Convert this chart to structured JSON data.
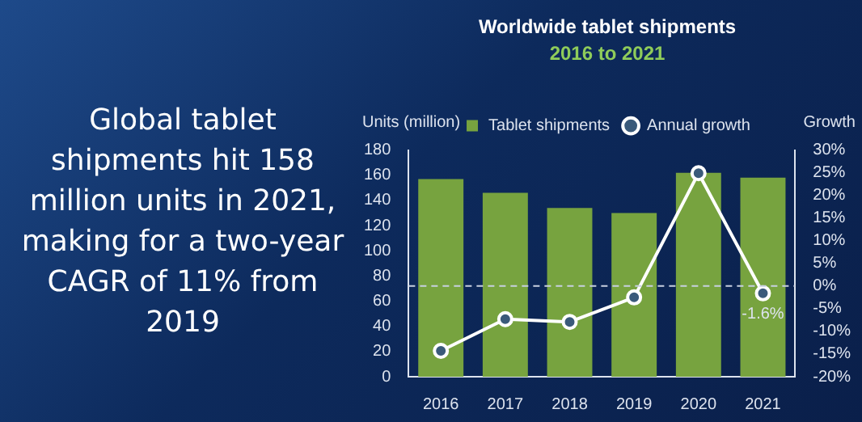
{
  "chart_data": {
    "type": "bar",
    "title": "Worldwide tablet shipments",
    "subtitle": "2016 to 2021",
    "ylabel": "Units (million)",
    "y2label": "Growth",
    "categories": [
      "2016",
      "2017",
      "2018",
      "2019",
      "2020",
      "2021"
    ],
    "series": [
      {
        "name": "Tablet shipments",
        "color": "#77a33f",
        "values": [
          157,
          146,
          134,
          130,
          162,
          158
        ]
      },
      {
        "name": "Annual growth",
        "type": "line",
        "axis": "y2",
        "color": "#ffffff",
        "values": [
          -14.3,
          -7.3,
          -7.9,
          -2.5,
          24.9,
          -1.6
        ],
        "value_labels": [
          null,
          null,
          null,
          null,
          null,
          "-1.6%"
        ]
      }
    ],
    "ylim": [
      0,
      180
    ],
    "yticks": [
      0,
      20,
      40,
      60,
      80,
      100,
      120,
      140,
      160,
      180
    ],
    "y2lim": [
      -20,
      30
    ],
    "y2ticks": [
      {
        "value": -20,
        "label": "-20%"
      },
      {
        "value": -15,
        "label": "-15%"
      },
      {
        "value": -10,
        "label": "-10%"
      },
      {
        "value": -5,
        "label": "-5%"
      },
      {
        "value": 0,
        "label": "0%"
      },
      {
        "value": 5,
        "label": "5%"
      },
      {
        "value": 10,
        "label": "10%"
      },
      {
        "value": 15,
        "label": "15%"
      },
      {
        "value": 20,
        "label": "20%"
      },
      {
        "value": 25,
        "label": "25%"
      },
      {
        "value": 30,
        "label": "30%"
      }
    ],
    "ref_lines": [
      {
        "axis": "y2",
        "value": 0,
        "color": "#c8d0e0",
        "line_style": "dashed"
      }
    ],
    "annotations": [
      "Global tablet shipments hit 158 million units in 2021, making for a two-year CAGR of 11% from 2019"
    ],
    "legend": "top",
    "marker": "circle",
    "grid": false
  }
}
